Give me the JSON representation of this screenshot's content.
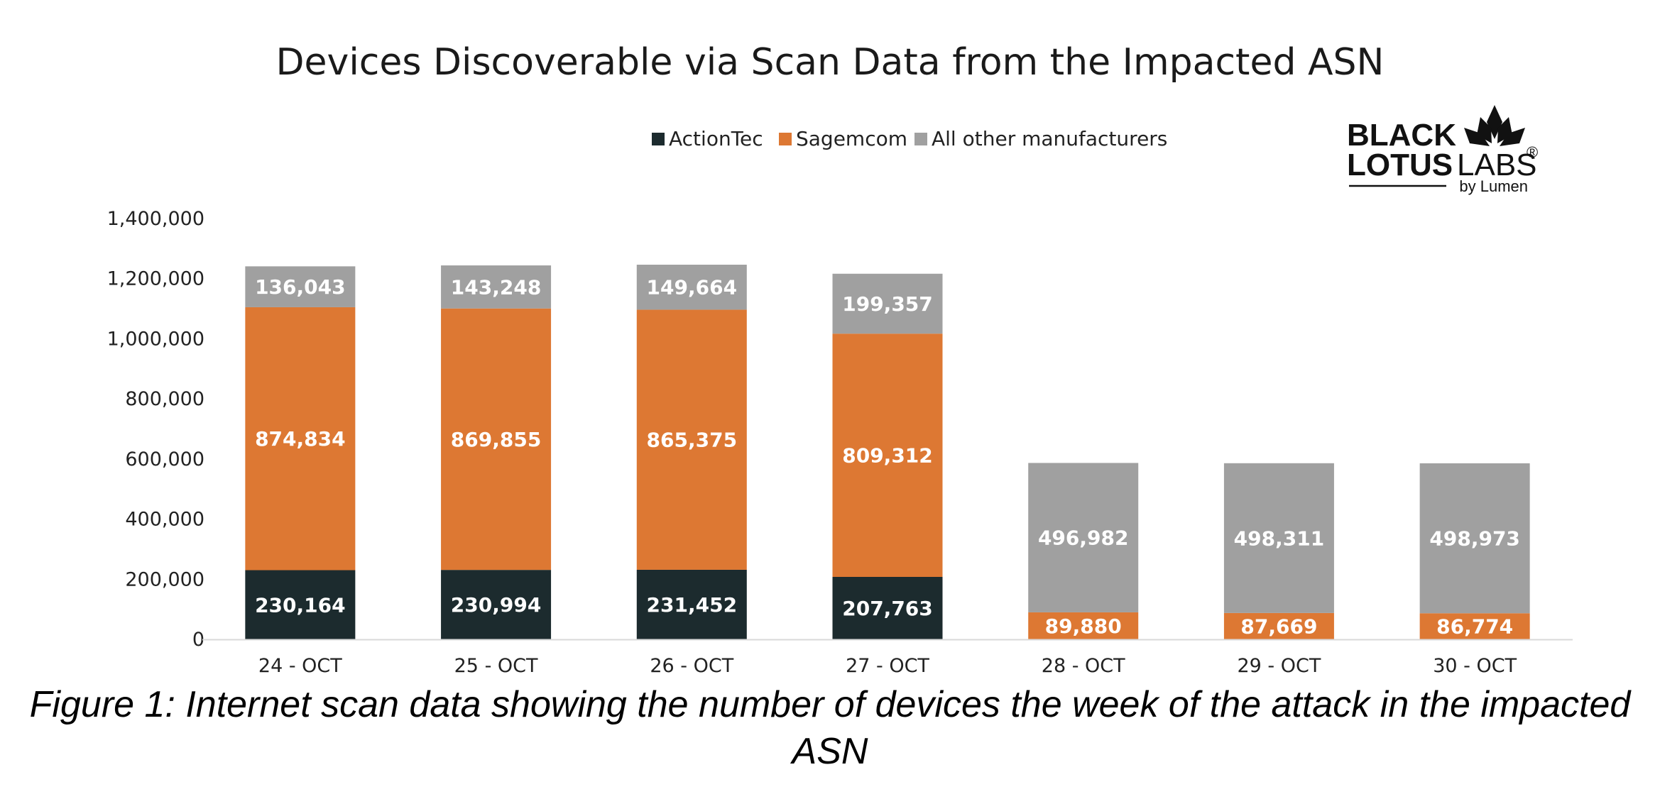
{
  "chart_data": {
    "type": "bar",
    "stacked": true,
    "title": "Devices Discoverable via Scan Data from the Impacted ASN",
    "xlabel": "",
    "ylabel": "",
    "ylim": [
      0,
      1400000
    ],
    "yticks": [
      0,
      200000,
      400000,
      600000,
      800000,
      1000000,
      1200000,
      1400000
    ],
    "ytick_labels": [
      "0",
      "200,000",
      "400,000",
      "600,000",
      "800,000",
      "1,000,000",
      "1,200,000",
      "1,400,000"
    ],
    "categories": [
      "24 - OCT",
      "25 - OCT",
      "26 - OCT",
      "27 - OCT",
      "28 - OCT",
      "29 - OCT",
      "30 - OCT"
    ],
    "legend_position": "top-center",
    "series": [
      {
        "name": "ActionTec",
        "color": "#1c2b2e",
        "values": [
          230164,
          230994,
          231452,
          207763,
          0,
          0,
          0
        ],
        "labels": [
          "230,164",
          "230,994",
          "231,452",
          "207,763",
          "",
          "",
          ""
        ]
      },
      {
        "name": "Sagemcom",
        "color": "#dd7833",
        "values": [
          874834,
          869855,
          865375,
          809312,
          89880,
          87669,
          86774
        ],
        "labels": [
          "874,834",
          "869,855",
          "865,375",
          "809,312",
          "89,880",
          "87,669",
          "86,774"
        ]
      },
      {
        "name": "All other manufacturers",
        "color": "#a0a0a0",
        "values": [
          136043,
          143248,
          149664,
          199357,
          496982,
          498311,
          498973
        ],
        "labels": [
          "136,043",
          "143,248",
          "149,664",
          "199,357",
          "496,982",
          "498,311",
          "498,973"
        ]
      }
    ]
  },
  "logo": {
    "line1": "BLACK",
    "line2a": "LOTUS",
    "line2b": "LABS",
    "registered": "®",
    "byline": "by Lumen"
  },
  "caption": {
    "text": "Figure 1: Internet scan data showing the number of devices the week of the attack in the impacted ASN"
  }
}
